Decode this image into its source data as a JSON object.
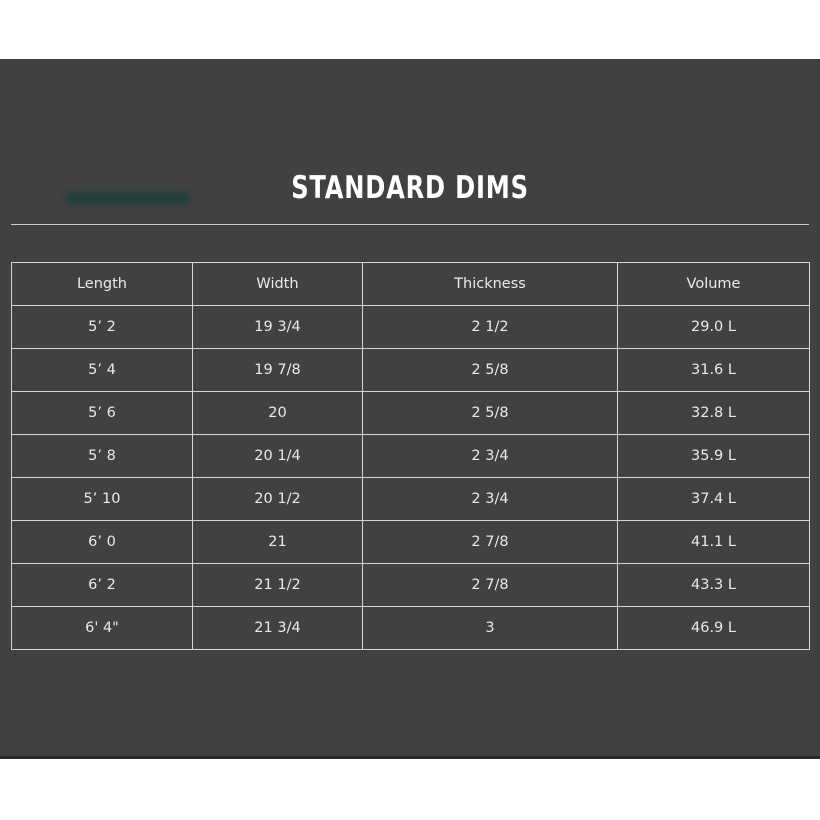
{
  "title": "STANDARD DIMS",
  "table": {
    "headers": [
      "Length",
      "Width",
      "Thickness",
      "Volume"
    ],
    "rows": [
      [
        "5’ 2",
        "19 3/4",
        "2 1/2",
        "29.0 L"
      ],
      [
        "5’ 4",
        "19 7/8",
        "2 5/8",
        "31.6 L"
      ],
      [
        "5’ 6",
        "20",
        "2 5/8",
        "32.8 L"
      ],
      [
        "5’ 8",
        "20 1/4",
        "2 3/4",
        "35.9 L"
      ],
      [
        "5’ 10",
        "20 1/2",
        "2 3/4",
        "37.4 L"
      ],
      [
        "6’ 0",
        "21",
        "2 7/8",
        "41.1 L"
      ],
      [
        "6’ 2",
        "21 1/2",
        "2 7/8",
        "43.3 L"
      ],
      [
        "6' 4\"",
        "21 3/4",
        "3",
        "46.9 L"
      ]
    ]
  },
  "colors": {
    "panel": "#414141",
    "text": "#ffffff",
    "border": "#d6d6d6"
  }
}
